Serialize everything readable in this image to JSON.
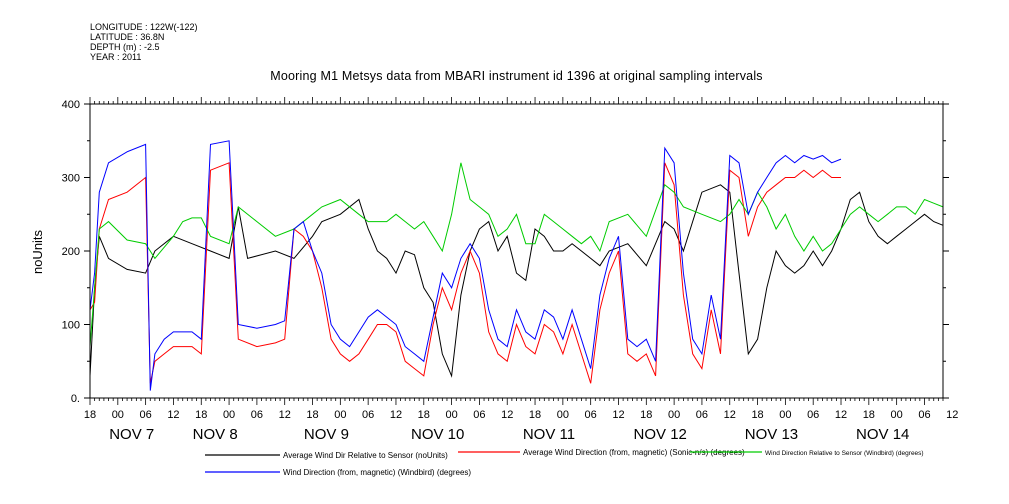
{
  "header": {
    "longitude": "LONGITUDE : 122W(-122)",
    "latitude": "LATITUDE : 36.8N",
    "depth": "DEPTH (m) : -2.5",
    "year": "YEAR : 2011"
  },
  "chart_data": {
    "type": "line",
    "title": "Mooring M1 Metsys data from MBARI instrument id 1396 at original sampling intervals",
    "ylabel": "noUnits",
    "xlabel": "",
    "ylim": [
      0,
      400
    ],
    "y_ticks": [
      "0.",
      "100",
      "200",
      "300",
      "400"
    ],
    "x_hour_ticks": [
      "18",
      "00",
      "06",
      "12",
      "18",
      "00",
      "06",
      "12",
      "18",
      "00",
      "06",
      "12",
      "18",
      "00",
      "06",
      "12",
      "18",
      "00",
      "06",
      "12",
      "18",
      "00",
      "06",
      "12",
      "18",
      "00",
      "06",
      "12",
      "18",
      "00",
      "06",
      "12"
    ],
    "x_day_labels": [
      "NOV  7",
      "NOV  8",
      "NOV  9",
      "NOV 10",
      "NOV 11",
      "NOV 12",
      "NOV 13",
      "NOV 14"
    ],
    "x_range_hours": [
      -6,
      178
    ],
    "grid": false,
    "legend_position": "bottom",
    "series": [
      {
        "name": "Average Wind Dir Relative to Sensor (noUnits)",
        "color": "#000000",
        "points": [
          [
            -6,
            30
          ],
          [
            -5,
            150
          ],
          [
            -4,
            220
          ],
          [
            -2,
            190
          ],
          [
            2,
            175
          ],
          [
            6,
            170
          ],
          [
            8,
            200
          ],
          [
            12,
            220
          ],
          [
            16,
            210
          ],
          [
            20,
            200
          ],
          [
            24,
            190
          ],
          [
            26,
            260
          ],
          [
            28,
            190
          ],
          [
            34,
            200
          ],
          [
            38,
            190
          ],
          [
            42,
            220
          ],
          [
            44,
            240
          ],
          [
            48,
            250
          ],
          [
            52,
            270
          ],
          [
            54,
            230
          ],
          [
            56,
            200
          ],
          [
            58,
            190
          ],
          [
            60,
            170
          ],
          [
            62,
            200
          ],
          [
            64,
            195
          ],
          [
            66,
            150
          ],
          [
            68,
            130
          ],
          [
            70,
            60
          ],
          [
            72,
            30
          ],
          [
            74,
            140
          ],
          [
            76,
            200
          ],
          [
            78,
            230
          ],
          [
            80,
            240
          ],
          [
            82,
            200
          ],
          [
            84,
            220
          ],
          [
            86,
            170
          ],
          [
            88,
            160
          ],
          [
            90,
            230
          ],
          [
            92,
            220
          ],
          [
            94,
            200
          ],
          [
            96,
            200
          ],
          [
            98,
            210
          ],
          [
            100,
            200
          ],
          [
            102,
            190
          ],
          [
            104,
            180
          ],
          [
            106,
            200
          ],
          [
            110,
            210
          ],
          [
            114,
            180
          ],
          [
            118,
            240
          ],
          [
            120,
            230
          ],
          [
            122,
            200
          ],
          [
            126,
            280
          ],
          [
            130,
            290
          ],
          [
            132,
            280
          ],
          [
            134,
            170
          ],
          [
            136,
            60
          ],
          [
            138,
            80
          ],
          [
            140,
            150
          ],
          [
            142,
            200
          ],
          [
            144,
            180
          ],
          [
            146,
            170
          ],
          [
            148,
            180
          ],
          [
            150,
            200
          ],
          [
            152,
            180
          ],
          [
            154,
            200
          ],
          [
            156,
            230
          ],
          [
            158,
            270
          ],
          [
            160,
            280
          ],
          [
            162,
            240
          ],
          [
            164,
            220
          ],
          [
            166,
            210
          ],
          [
            168,
            220
          ],
          [
            170,
            230
          ],
          [
            172,
            240
          ],
          [
            174,
            250
          ],
          [
            176,
            240
          ],
          [
            178,
            235
          ]
        ]
      },
      {
        "name": "Average Wind Direction (from, magnetic) (Sonic-n/s) (degrees)",
        "color": "#ff0000",
        "points": [
          [
            -6,
            120
          ],
          [
            -5,
            130
          ],
          [
            -4,
            230
          ],
          [
            -2,
            270
          ],
          [
            2,
            280
          ],
          [
            6,
            300
          ],
          [
            7,
            20
          ],
          [
            8,
            50
          ],
          [
            10,
            60
          ],
          [
            12,
            70
          ],
          [
            16,
            70
          ],
          [
            18,
            60
          ],
          [
            20,
            310
          ],
          [
            24,
            320
          ],
          [
            26,
            80
          ],
          [
            30,
            70
          ],
          [
            34,
            75
          ],
          [
            36,
            80
          ],
          [
            38,
            230
          ],
          [
            40,
            220
          ],
          [
            42,
            200
          ],
          [
            44,
            150
          ],
          [
            46,
            80
          ],
          [
            48,
            60
          ],
          [
            50,
            50
          ],
          [
            52,
            60
          ],
          [
            54,
            80
          ],
          [
            56,
            100
          ],
          [
            58,
            100
          ],
          [
            60,
            90
          ],
          [
            62,
            50
          ],
          [
            64,
            40
          ],
          [
            66,
            30
          ],
          [
            68,
            100
          ],
          [
            70,
            150
          ],
          [
            72,
            120
          ],
          [
            74,
            170
          ],
          [
            76,
            200
          ],
          [
            78,
            170
          ],
          [
            80,
            90
          ],
          [
            82,
            60
          ],
          [
            84,
            50
          ],
          [
            86,
            100
          ],
          [
            88,
            70
          ],
          [
            90,
            60
          ],
          [
            92,
            100
          ],
          [
            94,
            90
          ],
          [
            96,
            60
          ],
          [
            98,
            100
          ],
          [
            100,
            60
          ],
          [
            102,
            20
          ],
          [
            104,
            120
          ],
          [
            106,
            170
          ],
          [
            108,
            200
          ],
          [
            110,
            60
          ],
          [
            112,
            50
          ],
          [
            114,
            60
          ],
          [
            116,
            30
          ],
          [
            118,
            320
          ],
          [
            120,
            290
          ],
          [
            122,
            140
          ],
          [
            124,
            60
          ],
          [
            126,
            40
          ],
          [
            128,
            120
          ],
          [
            130,
            60
          ],
          [
            132,
            310
          ],
          [
            134,
            300
          ],
          [
            136,
            220
          ],
          [
            138,
            260
          ],
          [
            140,
            280
          ],
          [
            142,
            290
          ],
          [
            144,
            300
          ],
          [
            146,
            300
          ],
          [
            148,
            310
          ],
          [
            150,
            300
          ],
          [
            152,
            310
          ],
          [
            154,
            300
          ],
          [
            156,
            300
          ]
        ]
      },
      {
        "name": "Wind Direction Relative to Sensor (Windbird) (degrees)",
        "color": "#00cc00",
        "points": [
          [
            -6,
            70
          ],
          [
            -5,
            150
          ],
          [
            -4,
            230
          ],
          [
            -2,
            240
          ],
          [
            2,
            215
          ],
          [
            6,
            210
          ],
          [
            8,
            190
          ],
          [
            12,
            220
          ],
          [
            14,
            240
          ],
          [
            16,
            245
          ],
          [
            18,
            245
          ],
          [
            20,
            220
          ],
          [
            24,
            210
          ],
          [
            26,
            260
          ],
          [
            30,
            240
          ],
          [
            34,
            220
          ],
          [
            38,
            230
          ],
          [
            42,
            250
          ],
          [
            44,
            260
          ],
          [
            48,
            270
          ],
          [
            52,
            250
          ],
          [
            54,
            240
          ],
          [
            58,
            240
          ],
          [
            60,
            250
          ],
          [
            62,
            240
          ],
          [
            64,
            230
          ],
          [
            66,
            240
          ],
          [
            68,
            220
          ],
          [
            70,
            200
          ],
          [
            72,
            250
          ],
          [
            74,
            320
          ],
          [
            76,
            270
          ],
          [
            78,
            260
          ],
          [
            80,
            250
          ],
          [
            82,
            220
          ],
          [
            84,
            230
          ],
          [
            86,
            250
          ],
          [
            88,
            210
          ],
          [
            90,
            210
          ],
          [
            92,
            250
          ],
          [
            94,
            240
          ],
          [
            96,
            230
          ],
          [
            98,
            220
          ],
          [
            100,
            210
          ],
          [
            102,
            220
          ],
          [
            104,
            200
          ],
          [
            106,
            240
          ],
          [
            110,
            250
          ],
          [
            114,
            220
          ],
          [
            118,
            290
          ],
          [
            120,
            280
          ],
          [
            122,
            260
          ],
          [
            126,
            250
          ],
          [
            130,
            240
          ],
          [
            132,
            250
          ],
          [
            134,
            270
          ],
          [
            136,
            250
          ],
          [
            138,
            280
          ],
          [
            140,
            260
          ],
          [
            142,
            230
          ],
          [
            144,
            250
          ],
          [
            146,
            220
          ],
          [
            148,
            200
          ],
          [
            150,
            220
          ],
          [
            152,
            200
          ],
          [
            154,
            210
          ],
          [
            156,
            230
          ],
          [
            158,
            250
          ],
          [
            160,
            260
          ],
          [
            162,
            250
          ],
          [
            164,
            240
          ],
          [
            166,
            250
          ],
          [
            168,
            260
          ],
          [
            170,
            260
          ],
          [
            172,
            250
          ],
          [
            174,
            270
          ],
          [
            176,
            265
          ],
          [
            178,
            260
          ]
        ]
      },
      {
        "name": "Wind Direction (from, magnetic) (Windbird) (degrees)",
        "color": "#0000ff",
        "points": [
          [
            -6,
            120
          ],
          [
            -5,
            170
          ],
          [
            -4,
            280
          ],
          [
            -2,
            320
          ],
          [
            2,
            335
          ],
          [
            6,
            345
          ],
          [
            7,
            10
          ],
          [
            8,
            60
          ],
          [
            10,
            80
          ],
          [
            12,
            90
          ],
          [
            16,
            90
          ],
          [
            18,
            80
          ],
          [
            20,
            345
          ],
          [
            24,
            350
          ],
          [
            26,
            100
          ],
          [
            30,
            95
          ],
          [
            34,
            100
          ],
          [
            36,
            105
          ],
          [
            38,
            230
          ],
          [
            40,
            240
          ],
          [
            42,
            200
          ],
          [
            44,
            170
          ],
          [
            46,
            100
          ],
          [
            48,
            80
          ],
          [
            50,
            70
          ],
          [
            52,
            90
          ],
          [
            54,
            110
          ],
          [
            56,
            120
          ],
          [
            58,
            110
          ],
          [
            60,
            100
          ],
          [
            62,
            70
          ],
          [
            64,
            60
          ],
          [
            66,
            50
          ],
          [
            68,
            110
          ],
          [
            70,
            170
          ],
          [
            72,
            150
          ],
          [
            74,
            190
          ],
          [
            76,
            210
          ],
          [
            78,
            190
          ],
          [
            80,
            120
          ],
          [
            82,
            80
          ],
          [
            84,
            70
          ],
          [
            86,
            120
          ],
          [
            88,
            90
          ],
          [
            90,
            80
          ],
          [
            92,
            120
          ],
          [
            94,
            110
          ],
          [
            96,
            80
          ],
          [
            98,
            120
          ],
          [
            100,
            80
          ],
          [
            102,
            40
          ],
          [
            104,
            140
          ],
          [
            106,
            190
          ],
          [
            108,
            220
          ],
          [
            110,
            80
          ],
          [
            112,
            70
          ],
          [
            114,
            80
          ],
          [
            116,
            50
          ],
          [
            118,
            340
          ],
          [
            120,
            320
          ],
          [
            122,
            170
          ],
          [
            124,
            80
          ],
          [
            126,
            60
          ],
          [
            128,
            140
          ],
          [
            130,
            80
          ],
          [
            132,
            330
          ],
          [
            134,
            320
          ],
          [
            136,
            250
          ],
          [
            138,
            280
          ],
          [
            140,
            300
          ],
          [
            142,
            320
          ],
          [
            144,
            330
          ],
          [
            146,
            320
          ],
          [
            148,
            330
          ],
          [
            150,
            325
          ],
          [
            152,
            330
          ],
          [
            154,
            320
          ],
          [
            156,
            325
          ]
        ]
      }
    ]
  }
}
